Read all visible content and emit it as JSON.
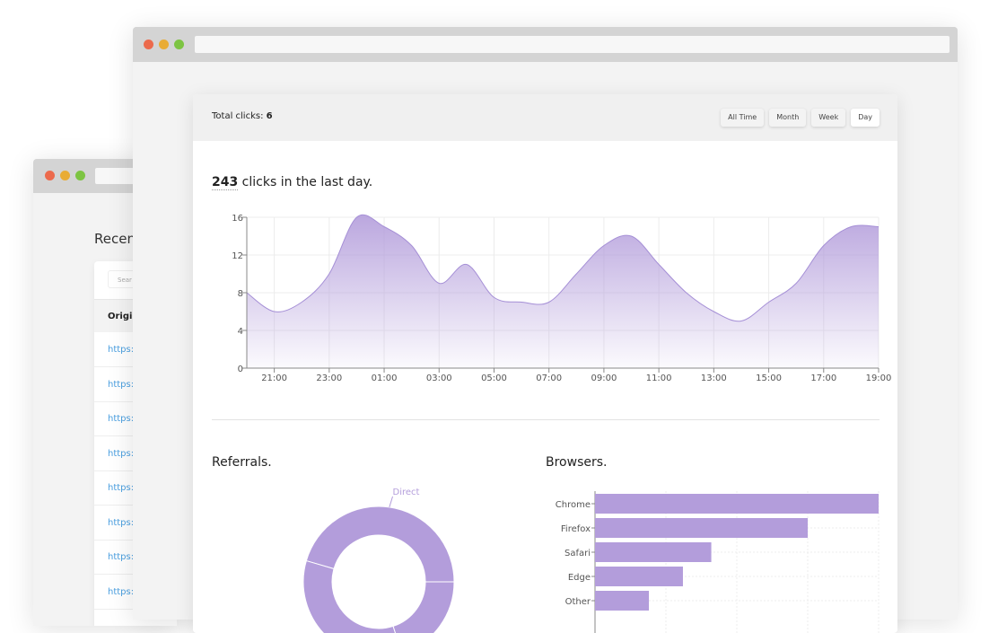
{
  "window_controls": {
    "close_color": "#ec6a4c",
    "minimize_color": "#e9ac35",
    "maximize_color": "#7dc442"
  },
  "back_window": {
    "heading": "Recen",
    "search_placeholder": "Sear",
    "column_header": "Origi",
    "rows": [
      "https:",
      "https:",
      "https:",
      "https:",
      "https:",
      "https:",
      "https:",
      "https:"
    ]
  },
  "dashboard": {
    "total_clicks_label": "Total clicks:",
    "total_clicks_value": "6",
    "range_buttons": [
      {
        "label": "All Time",
        "active": false
      },
      {
        "label": "Month",
        "active": false
      },
      {
        "label": "Week",
        "active": false
      },
      {
        "label": "Day",
        "active": true
      }
    ],
    "headline_count": "243",
    "headline_text": " clicks in the last day.",
    "referrals_title": "Referrals.",
    "browsers_title": "Browsers."
  },
  "colors": {
    "accent": "#b39ddb",
    "area_top": "#b39ddb",
    "link": "#4a9fe0"
  },
  "chart_data": [
    {
      "type": "area",
      "x": [
        "20:00",
        "21:00",
        "22:00",
        "23:00",
        "00:00",
        "01:00",
        "02:00",
        "03:00",
        "04:00",
        "05:00",
        "06:00",
        "07:00",
        "08:00",
        "09:00",
        "10:00",
        "11:00",
        "12:00",
        "13:00",
        "14:00",
        "15:00",
        "16:00",
        "17:00",
        "18:00",
        "19:00"
      ],
      "values": [
        8,
        6,
        7,
        10,
        16,
        15,
        13,
        9,
        11,
        7.5,
        7,
        7,
        10,
        13,
        14,
        11,
        8,
        6,
        5,
        7,
        9,
        13,
        15,
        15
      ],
      "x_tick_labels": [
        "21:00",
        "23:00",
        "01:00",
        "03:00",
        "05:00",
        "07:00",
        "09:00",
        "11:00",
        "13:00",
        "15:00",
        "17:00",
        "19:00"
      ],
      "y_tick_labels": [
        "0",
        "4",
        "8",
        "12",
        "16"
      ],
      "ylim": [
        0,
        16
      ],
      "grid": true
    },
    {
      "type": "pie",
      "donut": true,
      "slices": [
        {
          "name": "Direct",
          "value": 45.5
        },
        {
          "name": "",
          "value": 34.5
        },
        {
          "name": "",
          "value": 20
        }
      ]
    },
    {
      "type": "bar",
      "orientation": "horizontal",
      "categories": [
        "Chrome",
        "Firefox",
        "Safari",
        "Edge",
        "Other"
      ],
      "values": [
        100,
        75,
        41,
        31,
        19
      ],
      "grid": true
    }
  ]
}
